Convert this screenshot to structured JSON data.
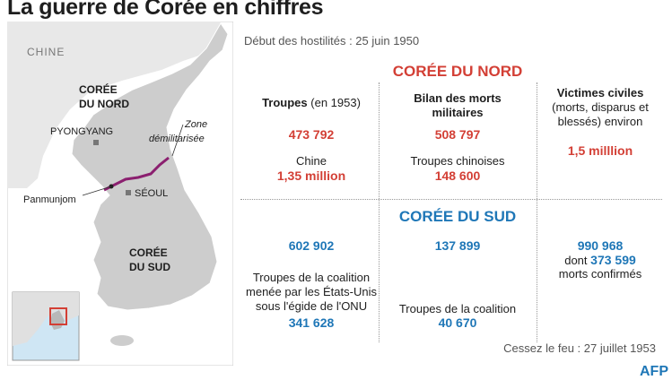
{
  "title": "La guerre de Corée en chiffres",
  "start": "Début des hostilités : 25 juin 1950",
  "map": {
    "china": "CHINE",
    "north_line1": "CORÉE",
    "north_line2": "DU NORD",
    "south_line1": "CORÉE",
    "south_line2": "DU SUD",
    "pyongyang": "PYONGYANG",
    "seoul": "SÉOUL",
    "panmunjom": "Panmunjom",
    "dmz_line1": "Zone",
    "dmz_line2": "démilitarisée"
  },
  "headers": {
    "north": "CORÉE DU NORD",
    "south": "CORÉE DU SUD"
  },
  "troops": {
    "label": "Troupes",
    "label_suffix": "(en 1953)",
    "north_value": "473 792",
    "china_label": "Chine",
    "china_value": "1,35 million",
    "south_value": "602 902",
    "coalition_label": "Troupes de la coalition menée par les États-Unis sous l'égide de l'ONU",
    "coalition_value": "341 628"
  },
  "military_deaths": {
    "label": "Bilan des morts militaires",
    "north_value": "508 797",
    "chinese_label": "Troupes chinoises",
    "chinese_value": "148 600",
    "south_value": "137 899",
    "coalition_label": "Troupes de la coalition",
    "coalition_value": "40 670"
  },
  "civilians": {
    "label": "Victimes civiles",
    "note": "(morts, disparus et blessés) environ",
    "north_value": "1,5 milllion",
    "south_value": "990 968",
    "confirmed_prefix": "dont",
    "confirmed_value": "373 599",
    "confirmed_suffix": "morts confirmés"
  },
  "ceasefire": "Cessez le feu : 27 juillet 1953",
  "logo": "AFP",
  "colors": {
    "north": "#d33f35",
    "south": "#1f77b7",
    "land": "#e5e5e5",
    "korea": "#cfcfcf",
    "sea": "#ffffff",
    "dmz": "#8b1f6f"
  }
}
